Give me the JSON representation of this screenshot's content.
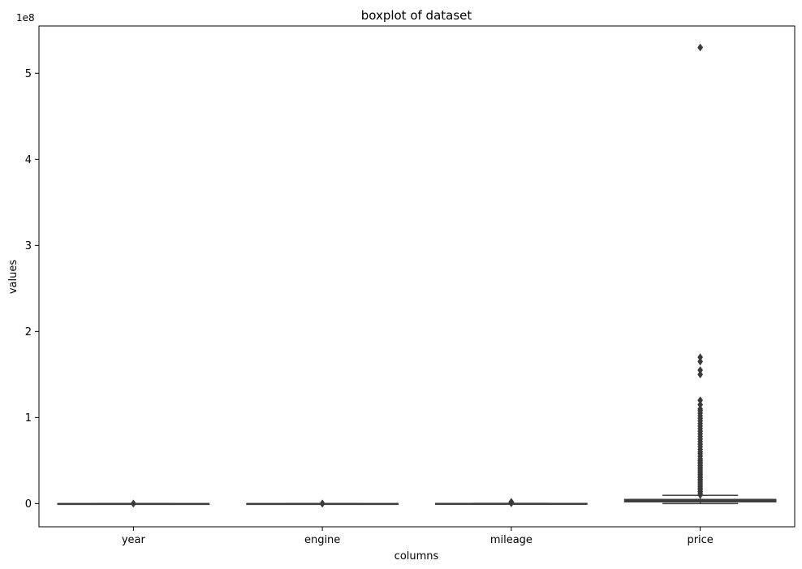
{
  "chart_data": {
    "type": "boxplot",
    "title": "boxplot of dataset",
    "xlabel": "columns",
    "ylabel": "values",
    "y_offset_label": "1e8",
    "y_scale_factor": 100000000,
    "ylim": [
      -0.27,
      5.55
    ],
    "yticks": [
      0,
      1,
      2,
      3,
      4,
      5
    ],
    "grid": false,
    "categories": [
      "year",
      "engine",
      "mileage",
      "price"
    ],
    "boxes": [
      {
        "category": "year",
        "whislo": 1.99e-05,
        "q1": 2.01e-05,
        "med": 2.015e-05,
        "q3": 2.019e-05,
        "whishi": 2.023e-05,
        "fliers": [
          1.96e-05,
          1.975e-05,
          1.985e-05
        ]
      },
      {
        "category": "engine",
        "whislo": 0.0,
        "q1": 1.6e-05,
        "med": 2e-05,
        "q3": 2.5e-05,
        "whishi": 4e-05,
        "fliers": [
          5e-05,
          6e-05,
          8e-05,
          0.0001,
          0.00012
        ]
      },
      {
        "category": "mileage",
        "whislo": 0.0,
        "q1": 0.0006,
        "med": 0.0009,
        "q3": 0.0013,
        "whishi": 0.0025,
        "fliers": [
          0.003,
          0.006,
          0.01,
          0.014,
          0.02
        ]
      },
      {
        "category": "price",
        "whislo": 0.0,
        "q1": 0.02,
        "med": 0.03,
        "q3": 0.048,
        "whishi": 0.095,
        "fliers": [
          0.1,
          0.12,
          0.14,
          0.16,
          0.18,
          0.2,
          0.22,
          0.24,
          0.26,
          0.28,
          0.3,
          0.32,
          0.34,
          0.36,
          0.38,
          0.4,
          0.42,
          0.44,
          0.46,
          0.48,
          0.5,
          0.52,
          0.55,
          0.58,
          0.6,
          0.63,
          0.66,
          0.69,
          0.72,
          0.75,
          0.78,
          0.81,
          0.84,
          0.87,
          0.9,
          0.93,
          0.96,
          0.99,
          1.02,
          1.05,
          1.08,
          1.1,
          1.15,
          1.2,
          1.5,
          1.55,
          1.65,
          1.7,
          5.3
        ]
      }
    ],
    "box_color": "#3b3b3b",
    "line_color": "#3f3f3f"
  }
}
